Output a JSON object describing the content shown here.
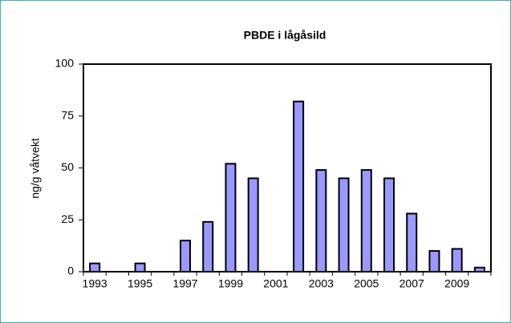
{
  "chart_data": {
    "type": "bar",
    "title": "PBDE i lågåsild",
    "y_label": "ng/g våtvekt",
    "categories": [
      "1993",
      null,
      "1995",
      null,
      "1997",
      null,
      "1999",
      null,
      "2001",
      null,
      "2003",
      null,
      "2005",
      null,
      "2007",
      null,
      "2009",
      null
    ],
    "values": [
      4,
      null,
      4,
      null,
      15,
      24,
      52,
      45,
      null,
      82,
      49,
      45,
      49,
      45,
      28,
      10,
      11,
      2
    ],
    "color": "#9999ff",
    "ylim": [
      0,
      100
    ],
    "yticks": [
      0,
      25,
      50,
      75,
      100
    ],
    "grid": false
  }
}
